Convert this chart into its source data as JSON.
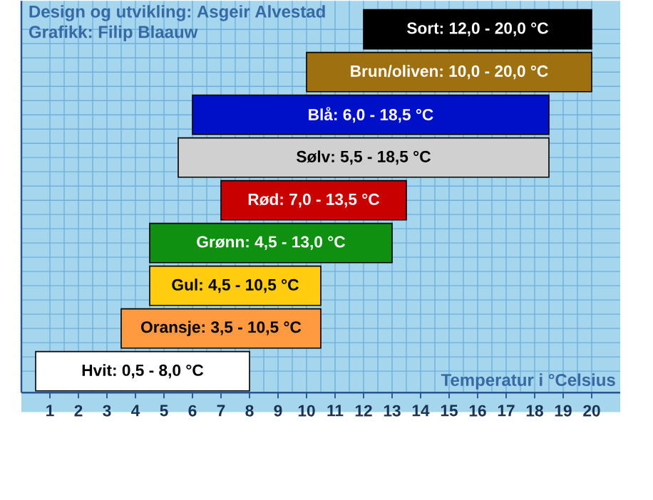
{
  "chart_data": {
    "type": "bar",
    "orientation": "horizontal",
    "categories": [
      "Sort: 12,0 - 20,0 °C",
      "Brun/oliven: 10,0 - 20,0 °C",
      "Blå: 6,0 - 18,5 °C",
      "Sølv: 5,5 - 18,5 °C",
      "Rød: 7,0 - 13,5 °C",
      "Grønn: 4,5 - 13,0 °C",
      "Gul: 4,5 - 10,5 °C",
      "Oransje: 3,5 - 10,5 °C",
      "Hvit: 0,5 - 8,0 °C"
    ],
    "base": [
      12,
      10,
      6,
      5.5,
      7,
      4.5,
      4.5,
      3.5,
      0.5
    ],
    "values": [
      8,
      10,
      12.5,
      13,
      6.5,
      8.5,
      6,
      7,
      7.5
    ],
    "colors": [
      "#000000",
      "#9e7010",
      "#0010c8",
      "#d0d0d0",
      "#c80000",
      "#109010",
      "#ffcc10",
      "#ff9a40",
      "#ffffff"
    ],
    "xlim": [
      0,
      21
    ],
    "xticks": [
      1,
      2,
      3,
      4,
      5,
      6,
      7,
      8,
      9,
      10,
      11,
      12,
      13,
      14,
      15,
      16,
      17,
      18,
      19,
      20
    ],
    "xlabel": "Temperatur i °Celsius",
    "annotations": [
      "Design og utvikling: Asgeir Alvestad",
      "Grafikk: Filip Blaauw"
    ],
    "grid": true,
    "tick_labels": "x"
  }
}
